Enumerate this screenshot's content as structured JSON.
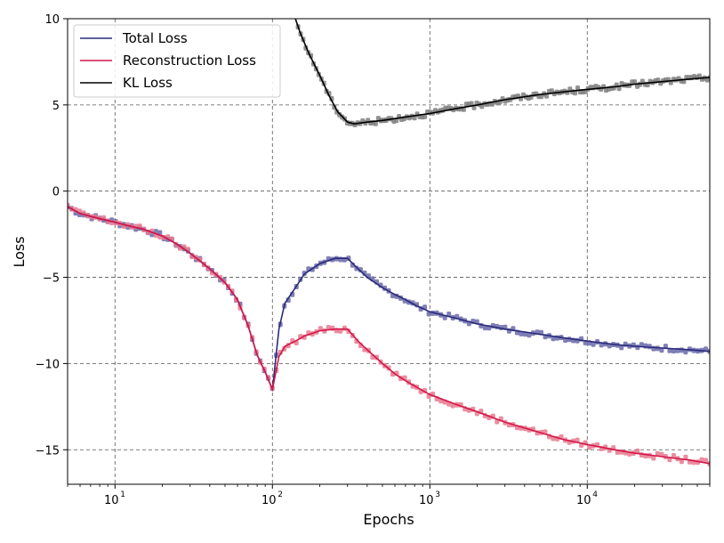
{
  "chart_data": {
    "type": "line",
    "title": "",
    "xlabel": "Epochs",
    "ylabel": "Loss",
    "xscale": "log",
    "xlim": [
      5,
      60000
    ],
    "ylim": [
      -17,
      10
    ],
    "grid": true,
    "legend_placement": "top-left",
    "x_ticks": [
      {
        "value": 10,
        "mantissa": "10",
        "exp": "1"
      },
      {
        "value": 100,
        "mantissa": "10",
        "exp": "2"
      },
      {
        "value": 1000,
        "mantissa": "10",
        "exp": "3"
      },
      {
        "value": 10000,
        "mantissa": "10",
        "exp": "4"
      }
    ],
    "y_ticks": [
      {
        "value": 10,
        "label": "10"
      },
      {
        "value": 5,
        "label": "5"
      },
      {
        "value": 0,
        "label": "0"
      },
      {
        "value": -5,
        "label": "−5"
      },
      {
        "value": -10,
        "label": "−10"
      },
      {
        "value": -15,
        "label": "−15"
      }
    ],
    "series": [
      {
        "name": "Total Loss",
        "color": "#2a2a7a",
        "marker_color": "#6a6aaa",
        "x": [
          5,
          6,
          8,
          10,
          12,
          15,
          20,
          25,
          30,
          40,
          50,
          60,
          70,
          80,
          90,
          100,
          110,
          120,
          140,
          160,
          200,
          250,
          300,
          350,
          400,
          500,
          600,
          700,
          800,
          1000,
          1500,
          2000,
          3000,
          5000,
          7000,
          10000,
          15000,
          20000,
          30000,
          45000,
          60000
        ],
        "y": [
          -0.9,
          -1.3,
          -1.6,
          -1.8,
          -2.0,
          -2.2,
          -2.6,
          -3.1,
          -3.6,
          -4.5,
          -5.3,
          -6.3,
          -7.8,
          -9.5,
          -10.5,
          -11.5,
          -8.0,
          -6.5,
          -5.6,
          -4.8,
          -4.2,
          -3.9,
          -3.9,
          -4.5,
          -5.0,
          -5.6,
          -6.0,
          -6.3,
          -6.6,
          -7.0,
          -7.4,
          -7.7,
          -8.0,
          -8.3,
          -8.5,
          -8.7,
          -8.9,
          -9.0,
          -9.1,
          -9.2,
          -9.3
        ]
      },
      {
        "name": "Reconstruction Loss",
        "color": "#d4174a",
        "marker_color": "#e8798f",
        "x": [
          5,
          6,
          8,
          10,
          12,
          15,
          20,
          25,
          30,
          40,
          50,
          60,
          70,
          80,
          90,
          100,
          110,
          120,
          140,
          160,
          200,
          250,
          300,
          350,
          400,
          500,
          600,
          700,
          800,
          1000,
          1500,
          2000,
          3000,
          5000,
          7000,
          10000,
          15000,
          20000,
          30000,
          45000,
          60000
        ],
        "y": [
          -0.9,
          -1.3,
          -1.6,
          -1.8,
          -2.0,
          -2.2,
          -2.6,
          -3.1,
          -3.6,
          -4.5,
          -5.3,
          -6.3,
          -7.8,
          -9.5,
          -10.5,
          -11.5,
          -9.6,
          -9.0,
          -8.7,
          -8.4,
          -8.1,
          -8.0,
          -8.0,
          -8.7,
          -9.2,
          -10.0,
          -10.6,
          -11.0,
          -11.3,
          -11.8,
          -12.4,
          -12.8,
          -13.4,
          -14.0,
          -14.4,
          -14.7,
          -15.0,
          -15.2,
          -15.4,
          -15.6,
          -15.8
        ]
      },
      {
        "name": "KL Loss",
        "color": "#000000",
        "marker_color": "#808080",
        "x": [
          140,
          150,
          170,
          200,
          230,
          260,
          300,
          330,
          400,
          500,
          700,
          1000,
          1500,
          2000,
          3000,
          5000,
          7000,
          10000,
          15000,
          20000,
          30000,
          45000,
          60000
        ],
        "y": [
          10.0,
          9.2,
          8.0,
          6.7,
          5.5,
          4.6,
          4.0,
          3.9,
          4.0,
          4.1,
          4.3,
          4.5,
          4.8,
          5.0,
          5.3,
          5.6,
          5.75,
          5.9,
          6.05,
          6.2,
          6.35,
          6.5,
          6.6
        ]
      }
    ]
  }
}
